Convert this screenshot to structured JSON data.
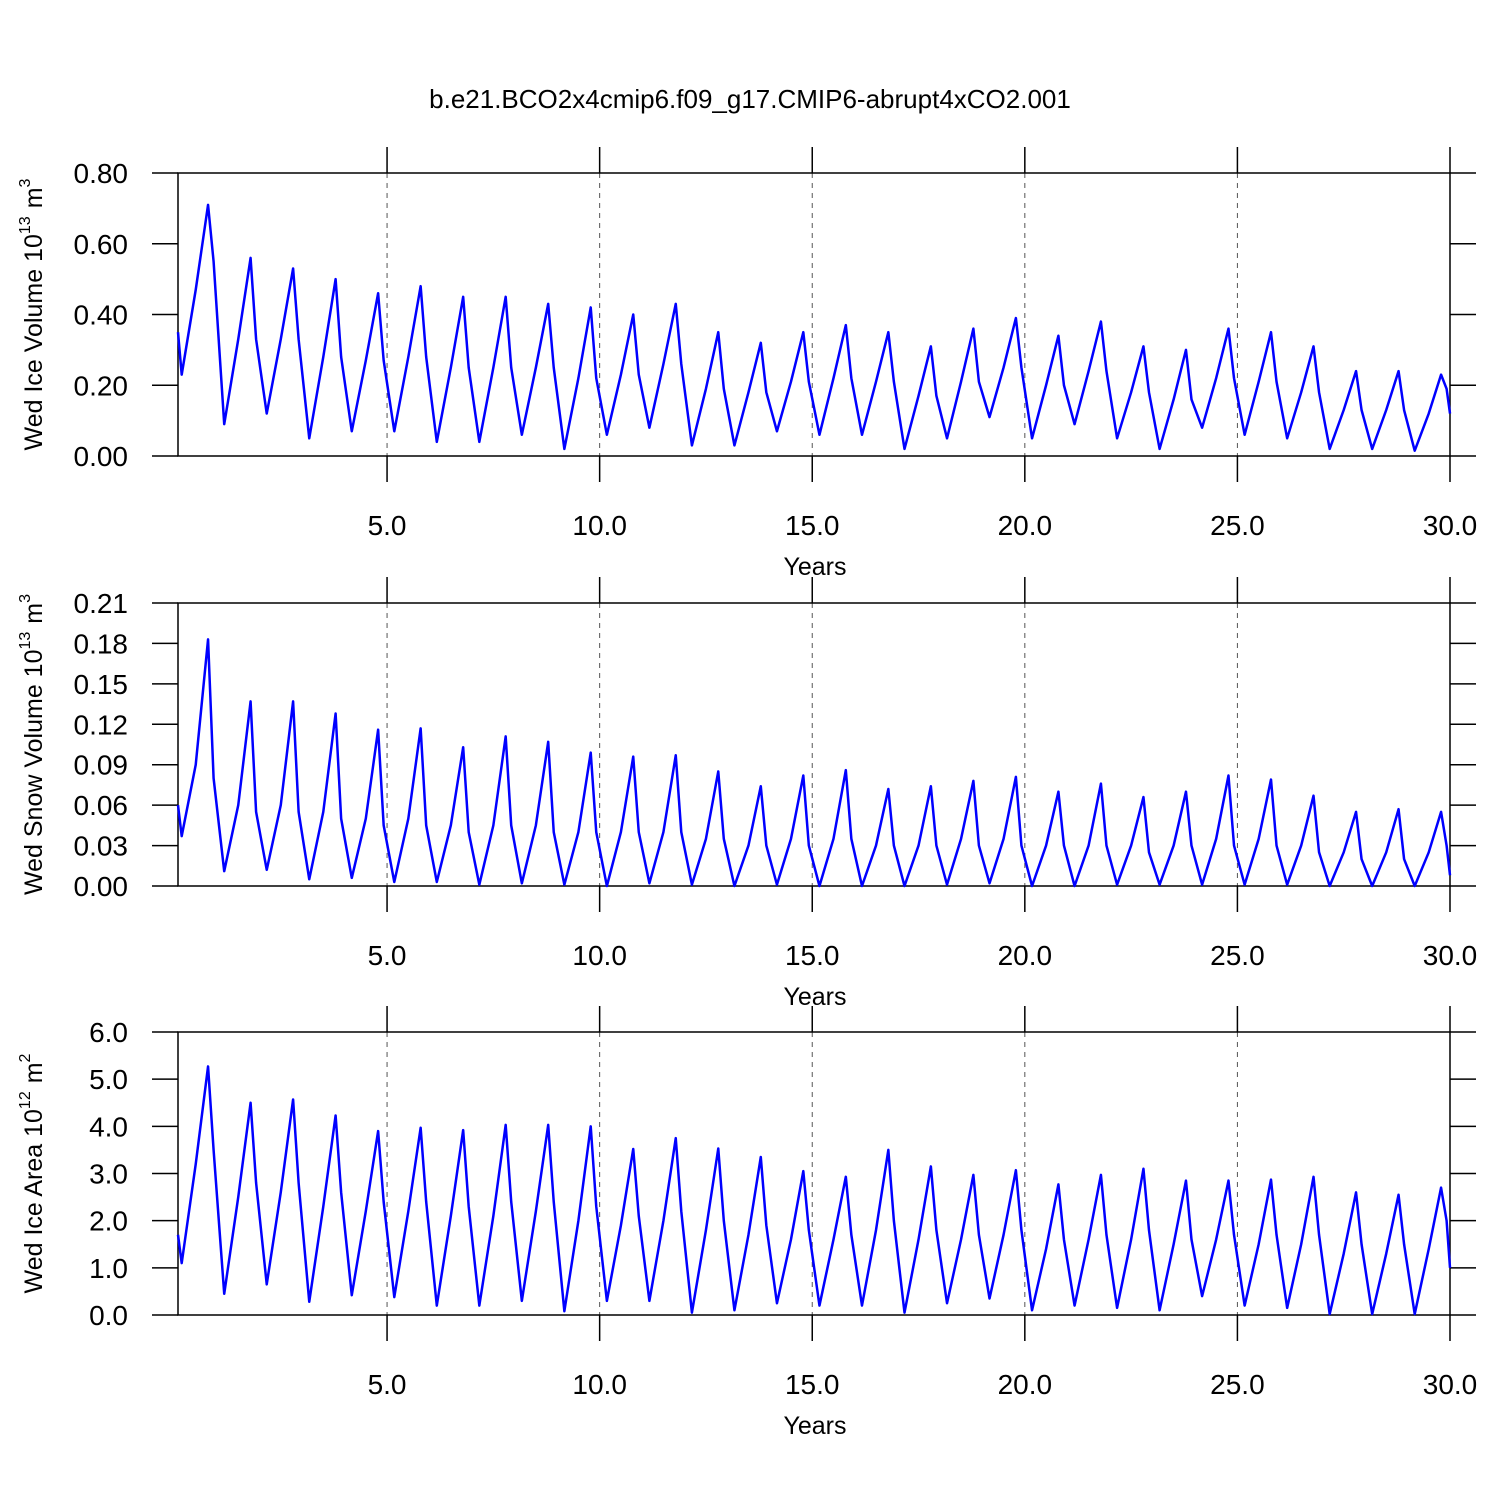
{
  "chart_data": [
    {
      "type": "line",
      "title": "b.e21.BCO2x4cmip6.f09_g17.CMIP6-abrupt4xCO2.001",
      "y_label": [
        "Wed Ice Volume 10",
        "13",
        "m",
        "3"
      ],
      "x_label": "Years",
      "xlim": [
        0.083,
        30
      ],
      "xticks": [
        {
          "value": 5,
          "label": "5.0"
        },
        {
          "value": 10,
          "label": "10.0"
        },
        {
          "value": 15,
          "label": "15.0"
        },
        {
          "value": 20,
          "label": "20.0"
        },
        {
          "value": 25,
          "label": "25.0"
        },
        {
          "value": 30,
          "label": "30.0"
        }
      ],
      "ylim": [
        0,
        0.8
      ],
      "yticks": [
        {
          "value": 0,
          "label": "0.00"
        },
        {
          "value": 0.2,
          "label": "0.20"
        },
        {
          "value": 0.4,
          "label": "0.40"
        },
        {
          "value": 0.6,
          "label": "0.60"
        },
        {
          "value": 0.8,
          "label": "0.80"
        }
      ],
      "xgrid": true,
      "x": [
        0.083,
        0.17,
        0.5,
        0.79,
        0.92,
        1.17,
        1.5,
        1.79,
        1.92,
        2.17,
        2.5,
        2.79,
        2.92,
        3.17,
        3.5,
        3.79,
        3.92,
        4.17,
        4.5,
        4.79,
        4.92,
        5.17,
        5.5,
        5.79,
        5.92,
        6.17,
        6.5,
        6.79,
        6.92,
        7.17,
        7.5,
        7.79,
        7.92,
        8.17,
        8.5,
        8.79,
        8.92,
        9.17,
        9.5,
        9.79,
        9.92,
        10.17,
        10.5,
        10.79,
        10.92,
        11.17,
        11.5,
        11.79,
        11.92,
        12.17,
        12.5,
        12.79,
        12.92,
        13.17,
        13.5,
        13.79,
        13.92,
        14.17,
        14.5,
        14.79,
        14.92,
        15.17,
        15.5,
        15.79,
        15.92,
        16.17,
        16.5,
        16.79,
        16.92,
        17.17,
        17.5,
        17.79,
        17.92,
        18.17,
        18.5,
        18.79,
        18.92,
        19.17,
        19.5,
        19.79,
        19.92,
        20.17,
        20.5,
        20.79,
        20.92,
        21.17,
        21.5,
        21.79,
        21.92,
        22.17,
        22.5,
        22.79,
        22.92,
        23.17,
        23.5,
        23.79,
        23.92,
        24.17,
        24.5,
        24.79,
        24.92,
        25.17,
        25.5,
        25.79,
        25.92,
        26.17,
        26.5,
        26.79,
        26.92,
        27.17,
        27.5,
        27.79,
        27.92,
        28.17,
        28.5,
        28.79,
        28.92,
        29.17,
        29.5,
        29.79,
        29.92,
        30
      ],
      "series": [
        {
          "color": "#0000ff",
          "values": [
            0.35,
            0.23,
            0.47,
            0.71,
            0.55,
            0.09,
            0.33,
            0.56,
            0.33,
            0.12,
            0.33,
            0.53,
            0.33,
            0.05,
            0.28,
            0.5,
            0.28,
            0.07,
            0.27,
            0.46,
            0.27,
            0.07,
            0.28,
            0.48,
            0.28,
            0.04,
            0.25,
            0.45,
            0.25,
            0.04,
            0.25,
            0.45,
            0.25,
            0.06,
            0.25,
            0.43,
            0.25,
            0.02,
            0.22,
            0.42,
            0.22,
            0.06,
            0.23,
            0.4,
            0.23,
            0.08,
            0.26,
            0.43,
            0.26,
            0.03,
            0.19,
            0.35,
            0.19,
            0.03,
            0.18,
            0.32,
            0.18,
            0.07,
            0.21,
            0.35,
            0.21,
            0.06,
            0.22,
            0.37,
            0.22,
            0.06,
            0.21,
            0.35,
            0.21,
            0.02,
            0.17,
            0.31,
            0.17,
            0.05,
            0.21,
            0.36,
            0.21,
            0.11,
            0.25,
            0.39,
            0.25,
            0.05,
            0.2,
            0.34,
            0.2,
            0.09,
            0.24,
            0.38,
            0.24,
            0.05,
            0.18,
            0.31,
            0.18,
            0.02,
            0.16,
            0.3,
            0.16,
            0.08,
            0.22,
            0.36,
            0.22,
            0.06,
            0.21,
            0.35,
            0.21,
            0.05,
            0.18,
            0.31,
            0.18,
            0.02,
            0.13,
            0.24,
            0.13,
            0.02,
            0.13,
            0.24,
            0.13,
            0.015,
            0.12,
            0.23,
            0.19,
            0.12
          ]
        }
      ]
    },
    {
      "type": "line",
      "y_label": [
        "Wed Snow Volume 10",
        "13",
        "m",
        "3"
      ],
      "x_label": "Years",
      "xlim": [
        0.083,
        30
      ],
      "xticks": [
        {
          "value": 5,
          "label": "5.0"
        },
        {
          "value": 10,
          "label": "10.0"
        },
        {
          "value": 15,
          "label": "15.0"
        },
        {
          "value": 20,
          "label": "20.0"
        },
        {
          "value": 25,
          "label": "25.0"
        },
        {
          "value": 30,
          "label": "30.0"
        }
      ],
      "ylim": [
        0,
        0.21
      ],
      "yticks": [
        {
          "value": 0,
          "label": "0.00"
        },
        {
          "value": 0.03,
          "label": "0.03"
        },
        {
          "value": 0.06,
          "label": "0.06"
        },
        {
          "value": 0.09,
          "label": "0.09"
        },
        {
          "value": 0.12,
          "label": "0.12"
        },
        {
          "value": 0.15,
          "label": "0.15"
        },
        {
          "value": 0.18,
          "label": "0.18"
        },
        {
          "value": 0.21,
          "label": "0.21"
        }
      ],
      "xgrid": true,
      "x": [
        0.083,
        0.17,
        0.5,
        0.79,
        0.92,
        1.17,
        1.5,
        1.79,
        1.92,
        2.17,
        2.5,
        2.79,
        2.92,
        3.17,
        3.5,
        3.79,
        3.92,
        4.17,
        4.5,
        4.79,
        4.92,
        5.17,
        5.5,
        5.79,
        5.92,
        6.17,
        6.5,
        6.79,
        6.92,
        7.17,
        7.5,
        7.79,
        7.92,
        8.17,
        8.5,
        8.79,
        8.92,
        9.17,
        9.5,
        9.79,
        9.92,
        10.17,
        10.5,
        10.79,
        10.92,
        11.17,
        11.5,
        11.79,
        11.92,
        12.17,
        12.5,
        12.79,
        12.92,
        13.17,
        13.5,
        13.79,
        13.92,
        14.17,
        14.5,
        14.79,
        14.92,
        15.17,
        15.5,
        15.79,
        15.92,
        16.17,
        16.5,
        16.79,
        16.92,
        17.17,
        17.5,
        17.79,
        17.92,
        18.17,
        18.5,
        18.79,
        18.92,
        19.17,
        19.5,
        19.79,
        19.92,
        20.17,
        20.5,
        20.79,
        20.92,
        21.17,
        21.5,
        21.79,
        21.92,
        22.17,
        22.5,
        22.79,
        22.92,
        23.17,
        23.5,
        23.79,
        23.92,
        24.17,
        24.5,
        24.79,
        24.92,
        25.17,
        25.5,
        25.79,
        25.92,
        26.17,
        26.5,
        26.79,
        26.92,
        27.17,
        27.5,
        27.79,
        27.92,
        28.17,
        28.5,
        28.79,
        28.92,
        29.17,
        29.5,
        29.79,
        29.92,
        30
      ],
      "series": [
        {
          "color": "#0000ff",
          "values": [
            0.06,
            0.037,
            0.09,
            0.183,
            0.08,
            0.011,
            0.06,
            0.137,
            0.055,
            0.012,
            0.06,
            0.137,
            0.055,
            0.005,
            0.055,
            0.128,
            0.05,
            0.006,
            0.05,
            0.116,
            0.045,
            0.003,
            0.05,
            0.117,
            0.045,
            0.003,
            0.045,
            0.103,
            0.04,
            0.001,
            0.045,
            0.111,
            0.045,
            0.002,
            0.045,
            0.107,
            0.04,
            0.001,
            0.04,
            0.099,
            0.04,
            0,
            0.04,
            0.096,
            0.04,
            0.002,
            0.04,
            0.097,
            0.04,
            0.001,
            0.035,
            0.085,
            0.035,
            0,
            0.03,
            0.074,
            0.03,
            0.001,
            0.035,
            0.082,
            0.03,
            0,
            0.035,
            0.086,
            0.035,
            0,
            0.03,
            0.072,
            0.03,
            0,
            0.03,
            0.074,
            0.03,
            0.001,
            0.035,
            0.078,
            0.03,
            0.002,
            0.035,
            0.081,
            0.03,
            0,
            0.03,
            0.07,
            0.03,
            0,
            0.03,
            0.076,
            0.03,
            0.001,
            0.03,
            0.066,
            0.025,
            0.001,
            0.03,
            0.07,
            0.03,
            0.001,
            0.035,
            0.082,
            0.03,
            0.001,
            0.035,
            0.079,
            0.03,
            0.001,
            0.03,
            0.067,
            0.025,
            0,
            0.025,
            0.055,
            0.02,
            0,
            0.025,
            0.057,
            0.02,
            0,
            0.025,
            0.055,
            0.03,
            0.008
          ]
        }
      ]
    },
    {
      "type": "line",
      "y_label": [
        "Wed Ice Area 10",
        "12",
        "m",
        "2"
      ],
      "x_label": "Years",
      "xlim": [
        0.083,
        30
      ],
      "xticks": [
        {
          "value": 5,
          "label": "5.0"
        },
        {
          "value": 10,
          "label": "10.0"
        },
        {
          "value": 15,
          "label": "15.0"
        },
        {
          "value": 20,
          "label": "20.0"
        },
        {
          "value": 25,
          "label": "25.0"
        },
        {
          "value": 30,
          "label": "30.0"
        }
      ],
      "ylim": [
        0,
        6
      ],
      "yticks": [
        {
          "value": 0,
          "label": "0.0"
        },
        {
          "value": 1,
          "label": "1.0"
        },
        {
          "value": 2,
          "label": "2.0"
        },
        {
          "value": 3,
          "label": "3.0"
        },
        {
          "value": 4,
          "label": "4.0"
        },
        {
          "value": 5,
          "label": "5.0"
        },
        {
          "value": 6,
          "label": "6.0"
        }
      ],
      "xgrid": true,
      "x": [
        0.083,
        0.17,
        0.5,
        0.79,
        0.92,
        1.17,
        1.5,
        1.79,
        1.92,
        2.17,
        2.5,
        2.79,
        2.92,
        3.17,
        3.5,
        3.79,
        3.92,
        4.17,
        4.5,
        4.79,
        4.92,
        5.17,
        5.5,
        5.79,
        5.92,
        6.17,
        6.5,
        6.79,
        6.92,
        7.17,
        7.5,
        7.79,
        7.92,
        8.17,
        8.5,
        8.79,
        8.92,
        9.17,
        9.5,
        9.79,
        9.92,
        10.17,
        10.5,
        10.79,
        10.92,
        11.17,
        11.5,
        11.79,
        11.92,
        12.17,
        12.5,
        12.79,
        12.92,
        13.17,
        13.5,
        13.79,
        13.92,
        14.17,
        14.5,
        14.79,
        14.92,
        15.17,
        15.5,
        15.79,
        15.92,
        16.17,
        16.5,
        16.79,
        16.92,
        17.17,
        17.5,
        17.79,
        17.92,
        18.17,
        18.5,
        18.79,
        18.92,
        19.17,
        19.5,
        19.79,
        19.92,
        20.17,
        20.5,
        20.79,
        20.92,
        21.17,
        21.5,
        21.79,
        21.92,
        22.17,
        22.5,
        22.79,
        22.92,
        23.17,
        23.5,
        23.79,
        23.92,
        24.17,
        24.5,
        24.79,
        24.92,
        25.17,
        25.5,
        25.79,
        25.92,
        26.17,
        26.5,
        26.79,
        26.92,
        27.17,
        27.5,
        27.79,
        27.92,
        28.17,
        28.5,
        28.79,
        28.92,
        29.17,
        29.5,
        29.79,
        29.92,
        30
      ],
      "series": [
        {
          "color": "#0000ff",
          "values": [
            1.7,
            1.1,
            3.2,
            5.27,
            3.5,
            0.45,
            2.5,
            4.5,
            2.8,
            0.65,
            2.6,
            4.57,
            2.8,
            0.28,
            2.3,
            4.23,
            2.6,
            0.42,
            2.2,
            3.9,
            2.4,
            0.38,
            2.2,
            3.97,
            2.4,
            0.2,
            2.1,
            3.92,
            2.3,
            0.2,
            2.1,
            4.03,
            2.4,
            0.3,
            2.2,
            4.03,
            2.4,
            0.08,
            2.0,
            4.0,
            2.3,
            0.3,
            1.9,
            3.52,
            2.1,
            0.3,
            2.0,
            3.75,
            2.2,
            0.05,
            1.8,
            3.53,
            2.0,
            0.1,
            1.7,
            3.35,
            1.9,
            0.25,
            1.6,
            3.05,
            1.8,
            0.2,
            1.6,
            2.93,
            1.7,
            0.2,
            1.8,
            3.5,
            2.0,
            0.05,
            1.6,
            3.15,
            1.8,
            0.25,
            1.6,
            2.97,
            1.7,
            0.35,
            1.7,
            3.07,
            1.8,
            0.1,
            1.4,
            2.77,
            1.6,
            0.2,
            1.6,
            2.97,
            1.7,
            0.15,
            1.6,
            3.1,
            1.8,
            0.1,
            1.5,
            2.85,
            1.6,
            0.4,
            1.6,
            2.85,
            1.7,
            0.2,
            1.5,
            2.87,
            1.7,
            0.15,
            1.5,
            2.93,
            1.7,
            0.02,
            1.3,
            2.6,
            1.5,
            0.02,
            1.3,
            2.55,
            1.5,
            0.02,
            1.4,
            2.7,
            2.0,
            1.0
          ]
        }
      ]
    }
  ]
}
